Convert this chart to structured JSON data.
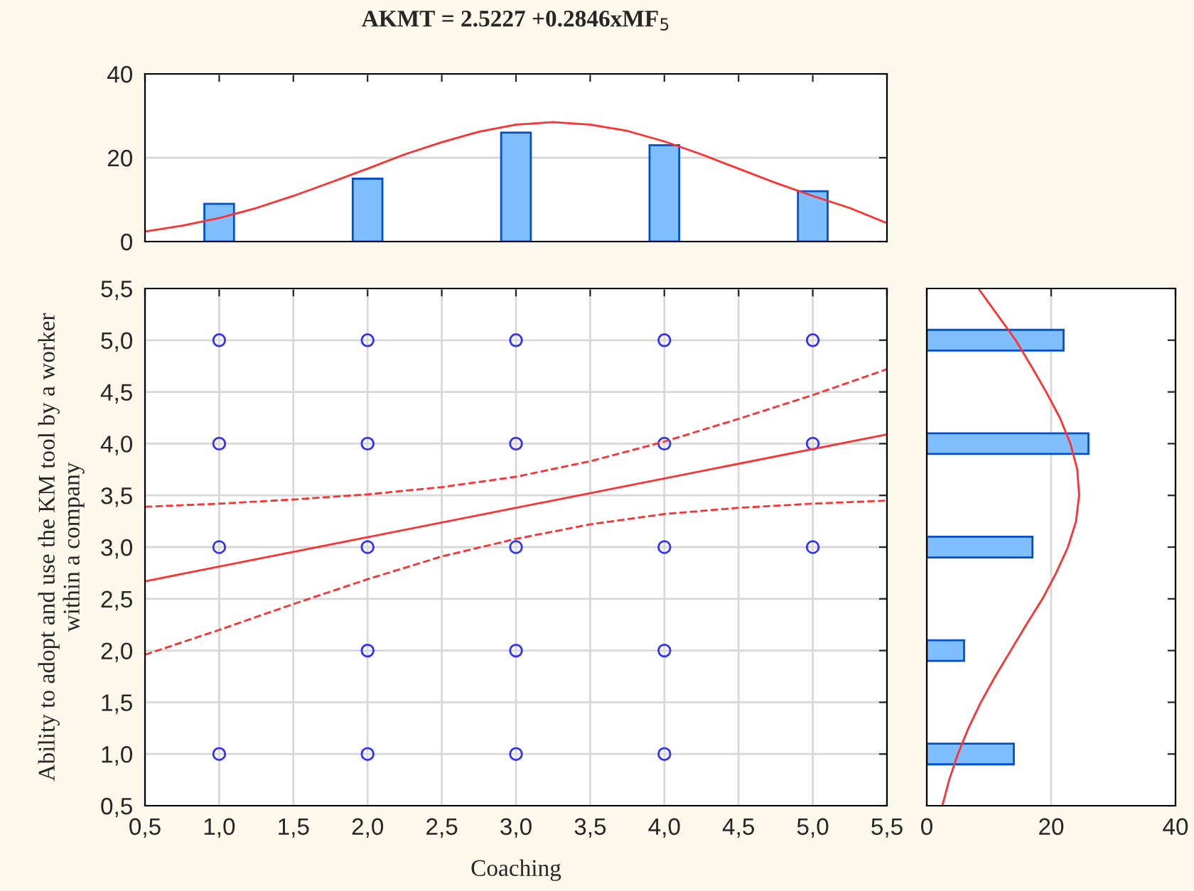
{
  "chart_data": [
    {
      "type": "bar",
      "title": "AKMT = 2.5227 +0.2846xMF$_{5}$",
      "xlim": [
        0.5,
        5.5
      ],
      "xticks": [
        {
          "value": 0.5,
          "label": null
        },
        {
          "value": 1.0,
          "label": null
        },
        {
          "value": 1.5,
          "label": null
        },
        {
          "value": 2.0,
          "label": null
        },
        {
          "value": 2.5,
          "label": null
        },
        {
          "value": 3.0,
          "label": null
        },
        {
          "value": 3.5,
          "label": null
        },
        {
          "value": 4.0,
          "label": null
        },
        {
          "value": 4.5,
          "label": null
        },
        {
          "value": 5.0,
          "label": null
        },
        {
          "value": 5.5,
          "label": null
        }
      ],
      "ylim": [
        0,
        40
      ],
      "yticks": [
        0,
        20,
        40
      ],
      "tick_labels": "y",
      "grid": "y",
      "series": [
        {
          "color": "#7fbfff",
          "x": [
            1,
            2,
            3,
            4,
            5
          ],
          "values": [
            9,
            15,
            26,
            23,
            12
          ]
        },
        {
          "type": "line",
          "color": "#ff3030",
          "line_style": "solid",
          "x": [
            0.5,
            0.75,
            1.0,
            1.25,
            1.5,
            1.75,
            2.0,
            2.25,
            2.5,
            2.75,
            3.0,
            3.25,
            3.5,
            3.75,
            4.0,
            4.25,
            4.5,
            4.75,
            5.0,
            5.25,
            5.5
          ],
          "values": [
            2.4,
            3.8,
            5.6,
            8.0,
            10.9,
            14.1,
            17.4,
            20.8,
            23.7,
            26.2,
            27.9,
            28.5,
            27.9,
            26.4,
            23.9,
            20.8,
            17.4,
            14.0,
            10.9,
            8.0,
            4.4
          ]
        }
      ]
    },
    {
      "type": "scatter",
      "xlabel": "Coaching",
      "ylabel": "Ability to adopt and use the KM tool by a worker\nwithin a company",
      "xlim": [
        0.5,
        5.5
      ],
      "xticks": [
        {
          "value": 0.5,
          "label": "0,5"
        },
        {
          "value": 1.0,
          "label": "1,0"
        },
        {
          "value": 1.5,
          "label": "1,5"
        },
        {
          "value": 2.0,
          "label": "2,0"
        },
        {
          "value": 2.5,
          "label": "2,5"
        },
        {
          "value": 3.0,
          "label": "3,0"
        },
        {
          "value": 3.5,
          "label": "3,5"
        },
        {
          "value": 4.0,
          "label": "4,0"
        },
        {
          "value": 4.5,
          "label": "4,5"
        },
        {
          "value": 5.0,
          "label": "5,0"
        },
        {
          "value": 5.5,
          "label": "5,5"
        }
      ],
      "ylim": [
        0.5,
        5.5
      ],
      "yticks": [
        {
          "value": 0.5,
          "label": "0,5"
        },
        {
          "value": 1.0,
          "label": "1,0"
        },
        {
          "value": 1.5,
          "label": "1,5"
        },
        {
          "value": 2.0,
          "label": "2,0"
        },
        {
          "value": 2.5,
          "label": "2,5"
        },
        {
          "value": 3.0,
          "label": "3,0"
        },
        {
          "value": 3.5,
          "label": "3,5"
        },
        {
          "value": 4.0,
          "label": "4,0"
        },
        {
          "value": 4.5,
          "label": "4,5"
        },
        {
          "value": 5.0,
          "label": "5,0"
        },
        {
          "value": 5.5,
          "label": "5,5"
        }
      ],
      "grid": true,
      "series": [
        {
          "color": "#3030ff",
          "marker": "circle",
          "x": [
            1,
            2,
            3,
            4,
            5,
            1,
            2,
            3,
            4,
            5,
            1,
            2,
            3,
            4,
            5,
            2,
            3,
            4,
            1,
            2,
            3,
            4
          ],
          "values": [
            5,
            5,
            5,
            5,
            5,
            4,
            4,
            4,
            4,
            4,
            3,
            3,
            3,
            3,
            3,
            2,
            2,
            2,
            1,
            1,
            1,
            1
          ]
        },
        {
          "type": "line",
          "color": "#ff3030",
          "line_style": "solid",
          "x": [
            0.5,
            5.5
          ],
          "values": [
            2.67,
            4.09
          ]
        },
        {
          "type": "line",
          "color": "#ff3030",
          "line_style": "dashed",
          "x": [
            0.5,
            1.0,
            1.5,
            2.0,
            2.5,
            3.0,
            3.5,
            4.0,
            4.5,
            5.0,
            5.5
          ],
          "values": [
            3.39,
            3.42,
            3.46,
            3.51,
            3.58,
            3.68,
            3.83,
            4.02,
            4.24,
            4.47,
            4.72
          ]
        },
        {
          "type": "line",
          "color": "#ff3030",
          "line_style": "dashed",
          "x": [
            0.5,
            1.0,
            1.5,
            2.0,
            2.5,
            3.0,
            3.5,
            4.0,
            4.5,
            5.0,
            5.5
          ],
          "values": [
            1.96,
            2.2,
            2.45,
            2.69,
            2.91,
            3.08,
            3.22,
            3.32,
            3.38,
            3.42,
            3.45
          ]
        }
      ]
    },
    {
      "type": "bar",
      "orientation": "horizontal",
      "xlim": [
        0,
        40
      ],
      "xticks": [
        0,
        20,
        40
      ],
      "ylim": [
        0.5,
        5.5
      ],
      "yticks": [
        {
          "value": 0.5,
          "label": null
        },
        {
          "value": 1.0,
          "label": null
        },
        {
          "value": 1.5,
          "label": null
        },
        {
          "value": 2.0,
          "label": null
        },
        {
          "value": 2.5,
          "label": null
        },
        {
          "value": 3.0,
          "label": null
        },
        {
          "value": 3.5,
          "label": null
        },
        {
          "value": 4.0,
          "label": null
        },
        {
          "value": 4.5,
          "label": null
        },
        {
          "value": 5.0,
          "label": null
        },
        {
          "value": 5.5,
          "label": null
        }
      ],
      "tick_labels": "x",
      "grid": "x",
      "series": [
        {
          "color": "#7fbfff",
          "x": [
            1,
            2,
            3,
            4,
            5
          ],
          "values": [
            14,
            6,
            17,
            26,
            22
          ]
        },
        {
          "type": "line",
          "color": "#ff3030",
          "line_style": "solid",
          "x": [
            0.5,
            0.75,
            1.0,
            1.25,
            1.5,
            1.75,
            2.0,
            2.25,
            2.5,
            2.75,
            3.0,
            3.25,
            3.5,
            3.75,
            4.0,
            4.25,
            4.5,
            4.75,
            5.0,
            5.25,
            5.5
          ],
          "values": [
            2.5,
            3.6,
            5.0,
            6.7,
            8.7,
            11.0,
            13.5,
            16.0,
            18.6,
            20.8,
            22.7,
            24.0,
            24.5,
            24.2,
            23.1,
            21.4,
            19.2,
            16.8,
            14.3,
            11.3,
            8.3
          ]
        }
      ]
    }
  ]
}
